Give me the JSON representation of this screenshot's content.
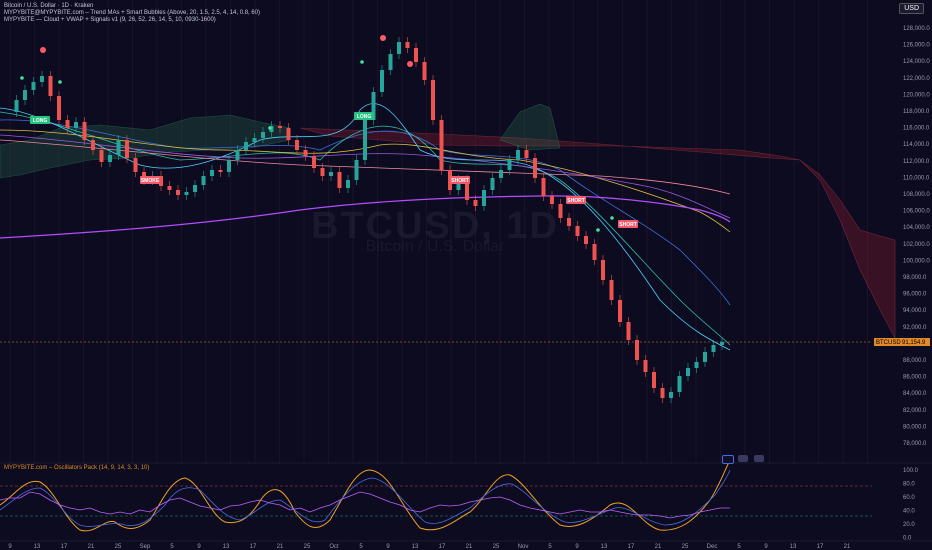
{
  "header": {
    "symbol_line": "Bitcoin / U.S. Dollar · 1D · Kraken",
    "indicator1": "MYPYBITE@MYPYBITE.com – Trend MAs + Smart Bubbles (Above, 20, 1.5, 2.5, 4, 14, 0.8, 60)",
    "indicator2": "MYPYBITE — Cloud + VWAP + Signals v1 (9, 26, 52, 26, 14, 5, 10, 0930-1600)"
  },
  "watermark": {
    "symbol": "BTCUSD, 1D",
    "name": "Bitcoin / U.S. Dollar"
  },
  "currency_button": "USD",
  "price_axis": [
    "128,000.0",
    "126,000.0",
    "124,000.0",
    "122,000.0",
    "120,000.0",
    "118,000.0",
    "116,000.0",
    "114,000.0",
    "112,000.0",
    "110,000.0",
    "108,000.0",
    "106,000.0",
    "104,000.0",
    "102,000.0",
    "100,000.0",
    "98,000.0",
    "96,000.0",
    "94,000.0",
    "92,000.0",
    "90,000.0",
    "88,000.0",
    "86,000.0",
    "84,000.0",
    "82,000.0",
    "80,000.0",
    "78,000.0"
  ],
  "current_price": "91,154.9",
  "current_price_label": "BTCUSD",
  "oscillator": {
    "legend": "MYPYBITE.com – Oscillators Pack (14, 9, 14, 3, 3, 10)",
    "axis": [
      "100.0",
      "80.0",
      "60.0",
      "40.0",
      "20.0",
      "0.0"
    ]
  },
  "time_axis": [
    "9",
    "13",
    "17",
    "21",
    "25",
    "Sep",
    "5",
    "9",
    "13",
    "17",
    "21",
    "25",
    "Oct",
    "5",
    "9",
    "13",
    "17",
    "21",
    "25",
    "Nov",
    "5",
    "9",
    "13",
    "17",
    "21",
    "25",
    "Dec",
    "5",
    "9",
    "13",
    "17",
    "21"
  ],
  "signals": [
    {
      "label": "LONG",
      "color": "#26c281"
    },
    {
      "label": "SMOKE",
      "color": "#f05a6a"
    },
    {
      "label": "LONG",
      "color": "#26c281"
    },
    {
      "label": "SHORT",
      "color": "#f05a6a"
    },
    {
      "label": "SHORT",
      "color": "#f05a6a"
    },
    {
      "label": "SHORT",
      "color": "#f05a6a"
    }
  ],
  "colors": {
    "up": "#26a69a",
    "down": "#ef5350",
    "cloud_bear": "#7a2233",
    "cloud_bull": "#1f4a3a",
    "vwap": "#b34dff"
  }
}
